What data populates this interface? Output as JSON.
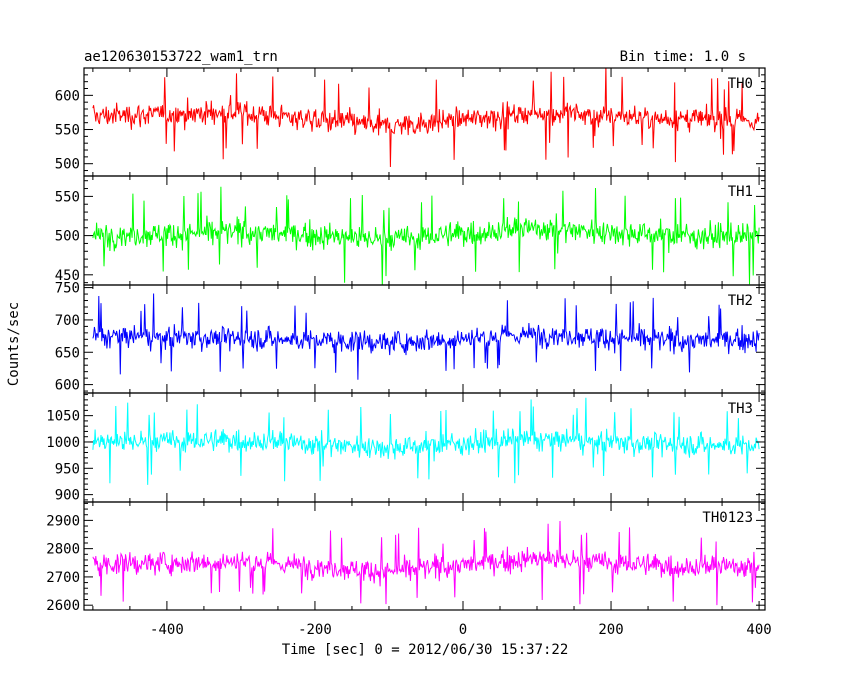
{
  "header": {
    "left_title": "ae120630153722_wam1_trn",
    "right_title": "Bin time: 1.0 s"
  },
  "chart_data": {
    "type": "line",
    "xlabel": "Time [sec] 0 = 2012/06/30 15:37:22",
    "ylabel": "Counts/sec",
    "xlim": [
      -512,
      408
    ],
    "xticks": [
      -400,
      -200,
      0,
      200,
      400
    ],
    "bin_time_s": 1.0,
    "panels": [
      {
        "name": "TH0",
        "color": "#ff0000",
        "ylim": [
          482,
          640
        ],
        "yticks": [
          500,
          550,
          600
        ],
        "mean": 568,
        "spread": 22,
        "band": [
          510,
          625
        ],
        "segment_means": [
          {
            "t": -500,
            "v": 570
          },
          {
            "t": -300,
            "v": 575
          },
          {
            "t": -100,
            "v": 555
          },
          {
            "t": 100,
            "v": 575
          },
          {
            "t": 300,
            "v": 565
          },
          {
            "t": 400,
            "v": 562
          }
        ]
      },
      {
        "name": "TH1",
        "color": "#00ff00",
        "ylim": [
          437,
          576
        ],
        "yticks": [
          450,
          500,
          550
        ],
        "mean": 500,
        "spread": 20,
        "band": [
          455,
          565
        ],
        "segment_means": [
          {
            "t": -500,
            "v": 500
          },
          {
            "t": -300,
            "v": 505
          },
          {
            "t": -100,
            "v": 495
          },
          {
            "t": 100,
            "v": 510
          },
          {
            "t": 300,
            "v": 500
          },
          {
            "t": 400,
            "v": 498
          }
        ]
      },
      {
        "name": "TH2",
        "color": "#0000ff",
        "ylim": [
          587,
          754
        ],
        "yticks": [
          600,
          650,
          700,
          750
        ],
        "mean": 672,
        "spread": 22,
        "band": [
          610,
          745
        ],
        "segment_means": [
          {
            "t": -500,
            "v": 675
          },
          {
            "t": -300,
            "v": 672
          },
          {
            "t": -100,
            "v": 665
          },
          {
            "t": 100,
            "v": 678
          },
          {
            "t": 300,
            "v": 668
          },
          {
            "t": 400,
            "v": 670
          }
        ]
      },
      {
        "name": "TH3",
        "color": "#00ffff",
        "ylim": [
          886,
          1093
        ],
        "yticks": [
          900,
          950,
          1000,
          1050
        ],
        "mean": 997,
        "spread": 27,
        "band": [
          910,
          1080
        ],
        "segment_means": [
          {
            "t": -500,
            "v": 1000
          },
          {
            "t": -300,
            "v": 1003
          },
          {
            "t": -100,
            "v": 990
          },
          {
            "t": 100,
            "v": 1005
          },
          {
            "t": 300,
            "v": 995
          },
          {
            "t": 400,
            "v": 993
          }
        ]
      },
      {
        "name": "TH0123",
        "color": "#ff00ff",
        "ylim": [
          2583,
          2965
        ],
        "yticks": [
          2600,
          2700,
          2800,
          2900
        ],
        "mean": 2740,
        "spread": 50,
        "band": [
          2610,
          2930
        ],
        "segment_means": [
          {
            "t": -500,
            "v": 2745
          },
          {
            "t": -300,
            "v": 2755
          },
          {
            "t": -100,
            "v": 2720
          },
          {
            "t": 100,
            "v": 2765
          },
          {
            "t": 300,
            "v": 2735
          },
          {
            "t": 400,
            "v": 2740
          }
        ]
      }
    ]
  }
}
